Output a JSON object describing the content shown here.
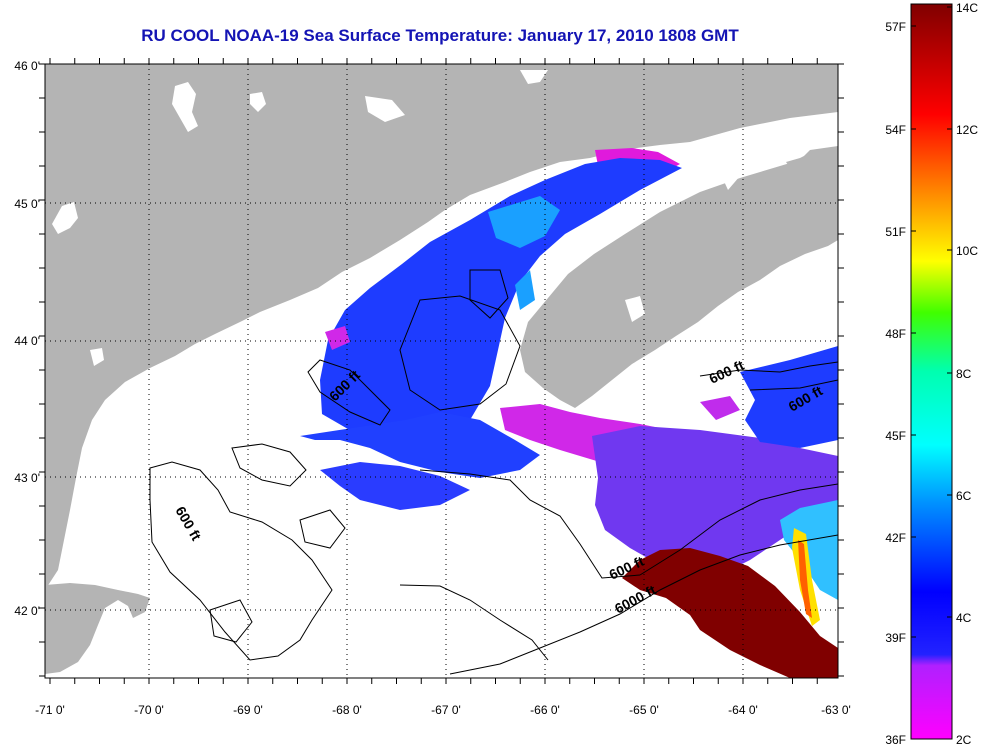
{
  "title": "RU COOL  NOAA-19  Sea Surface Temperature:  January 17, 2010 1808 GMT",
  "lat_labels": [
    "46 0'",
    "45 0'",
    "44 0'",
    "43 0'",
    "42 0'"
  ],
  "lon_labels": [
    "-71 0'",
    "-70 0'",
    "-69 0'",
    "-68 0'",
    "-67 0'",
    "-66 0'",
    "-65 0'",
    "-64 0'",
    "-63 0'"
  ],
  "contour_labels": [
    "600 ft",
    "600 ft",
    "600 ft",
    "600 ft",
    "600 ft",
    "6000 ft"
  ],
  "colorbar": {
    "fahrenheit": [
      "57F",
      "54F",
      "51F",
      "48F",
      "45F",
      "42F",
      "39F",
      "36F"
    ],
    "celsius": [
      "14C",
      "12C",
      "10C",
      "8C",
      "6C",
      "4C",
      "2C"
    ]
  },
  "colors": {
    "land": "#b4b4b4",
    "water": "#ffffff",
    "title": "#1414b4",
    "warm": "#800000"
  }
}
